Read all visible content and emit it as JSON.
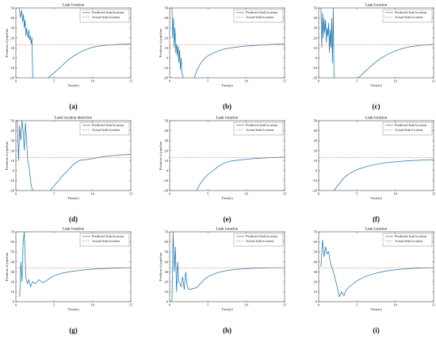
{
  "chart_data": [
    {
      "panel": "(a)",
      "type": "line",
      "title": "Leak location",
      "xlabel": "Time(s)",
      "ylabel": "Position of pipeline",
      "xlim": [
        0,
        15
      ],
      "ylim": [
        -20,
        50
      ],
      "xticks": [
        0,
        5,
        10,
        15
      ],
      "yticks": [
        -20,
        -10,
        0,
        10,
        20,
        30,
        40,
        50
      ],
      "legend": "top-right",
      "series": [
        {
          "name": "Predicted leak location",
          "color": "#1f77b4",
          "style": "solid",
          "x": [
            0.45,
            0.6,
            0.75,
            0.9,
            1.0,
            1.1,
            1.2,
            1.3,
            1.4,
            1.5,
            1.6,
            1.7,
            1.8,
            1.9,
            2.0,
            2.1,
            2.2
          ],
          "y": [
            50,
            40,
            48,
            36,
            44,
            30,
            38,
            22,
            30,
            24,
            20,
            28,
            18,
            22,
            14,
            20,
            -20
          ]
        },
        {
          "name": "Predicted leak location",
          "color": "#1f77b4",
          "style": "solid",
          "x": [
            4.2,
            5,
            6,
            7,
            8,
            9,
            10,
            11,
            12,
            13,
            14,
            15
          ],
          "y": [
            -20,
            -15,
            -8,
            -1,
            4,
            8,
            10.5,
            12,
            12.8,
            13.3,
            13.7,
            14
          ]
        },
        {
          "name": "Actual leak location",
          "color": "#e8622c",
          "style": "dashed",
          "x": [
            0,
            15
          ],
          "y": [
            13,
            13
          ]
        }
      ]
    },
    {
      "panel": "(b)",
      "type": "line",
      "title": "",
      "xlabel": "Time(s)",
      "ylabel": "Position of pipeline",
      "xlim": [
        0,
        15
      ],
      "ylim": [
        -20,
        50
      ],
      "xticks": [
        0,
        5,
        10,
        15
      ],
      "yticks": [
        -20,
        -10,
        0,
        10,
        20,
        30,
        40,
        50
      ],
      "legend": "top-right",
      "series": [
        {
          "name": "Predicted leak location",
          "color": "#1f77b4",
          "style": "solid",
          "x": [
            0.3,
            0.4,
            0.5,
            0.6,
            0.7,
            0.8,
            0.9,
            1.0,
            1.1,
            1.2,
            1.3,
            1.4,
            1.5,
            1.6,
            1.7,
            1.8
          ],
          "y": [
            50,
            20,
            40,
            10,
            30,
            5,
            14,
            2,
            12,
            -5,
            8,
            -12,
            0,
            -15,
            -18,
            -20
          ]
        },
        {
          "name": "Predicted leak location",
          "color": "#1f77b4",
          "style": "solid",
          "x": [
            3.2,
            3.6,
            4,
            4.5,
            5,
            6,
            7,
            8,
            9,
            10,
            11,
            12,
            13,
            14,
            15
          ],
          "y": [
            -20,
            -12,
            -6,
            -1,
            2,
            6,
            8.5,
            10,
            11,
            11.8,
            12.4,
            12.9,
            13.3,
            13.7,
            14
          ]
        },
        {
          "name": "Actual leak location",
          "color": "#e8622c",
          "style": "dashed",
          "x": [
            0,
            15
          ],
          "y": [
            13,
            13
          ]
        }
      ]
    },
    {
      "panel": "(c)",
      "type": "line",
      "title": "Leak location",
      "xlabel": "Time(s)",
      "ylabel": "",
      "xlim": [
        0,
        15
      ],
      "ylim": [
        -20,
        50
      ],
      "xticks": [
        0,
        5,
        10,
        15
      ],
      "yticks": [
        -20,
        -10,
        0,
        10,
        20,
        30,
        40,
        50
      ],
      "legend": "top-right",
      "series": [
        {
          "name": "Predicted leak location",
          "color": "#1f77b4",
          "style": "solid",
          "x": [
            0.3,
            0.4,
            0.5,
            0.6,
            0.7,
            0.8,
            0.9,
            1.0,
            1.1,
            1.2,
            1.3,
            1.4,
            1.5,
            1.6,
            1.7,
            1.8,
            1.9,
            2.0
          ],
          "y": [
            50,
            10,
            45,
            20,
            40,
            25,
            38,
            15,
            30,
            22,
            35,
            5,
            28,
            10,
            40,
            -5,
            50,
            -20
          ]
        },
        {
          "name": "Predicted leak location",
          "color": "#1f77b4",
          "style": "solid",
          "x": [
            5.2,
            6,
            7,
            8,
            9,
            10,
            11,
            12,
            13,
            14,
            15
          ],
          "y": [
            -20,
            -14,
            -7,
            -1,
            3.5,
            7,
            9.5,
            11.2,
            12.3,
            13,
            13.5
          ]
        },
        {
          "name": "Actual leak location",
          "color": "#e8622c",
          "style": "dashed",
          "x": [
            0,
            15
          ],
          "y": [
            13,
            13
          ]
        }
      ]
    },
    {
      "panel": "(d)",
      "type": "line",
      "title": "Leak location detection",
      "xlabel": "Time(s)",
      "ylabel": "Position of pipeline",
      "xlim": [
        0,
        15
      ],
      "ylim": [
        -20,
        50
      ],
      "xticks": [
        0,
        5,
        10,
        15
      ],
      "yticks": [
        -20,
        -10,
        0,
        10,
        20,
        30,
        40,
        50
      ],
      "legend": "top-right",
      "series": [
        {
          "name": "Predicted leak location",
          "color": "#1f77b4",
          "style": "solid",
          "x": [
            0.2,
            0.35,
            0.5,
            0.65,
            0.8,
            0.95,
            1.1,
            1.25,
            1.4,
            1.55,
            1.7,
            1.85,
            2.0,
            2.2
          ],
          "y": [
            50,
            10,
            45,
            30,
            50,
            40,
            20,
            48,
            30,
            10,
            5,
            -5,
            -15,
            -20
          ]
        },
        {
          "name": "Predicted leak location",
          "color": "#1f77b4",
          "style": "solid",
          "x": [
            4.5,
            5,
            5.5,
            6,
            6.5,
            7,
            7.5,
            8,
            8.5,
            9,
            10,
            11,
            12,
            13,
            14,
            15
          ],
          "y": [
            -20,
            -15,
            -11,
            -6,
            -2,
            2,
            6,
            9,
            10.5,
            10.8,
            12,
            13.5,
            14.5,
            15.2,
            15.8,
            16.2
          ]
        },
        {
          "name": "Actual leak location",
          "color": "#e8622c",
          "style": "dashed",
          "x": [
            0,
            15
          ],
          "y": [
            13,
            13
          ]
        }
      ]
    },
    {
      "panel": "(e)",
      "type": "line",
      "title": "Leak location",
      "xlabel": "Time(s)",
      "ylabel": "Position of pipeline",
      "xlim": [
        0,
        15
      ],
      "ylim": [
        -20,
        50
      ],
      "xticks": [
        0,
        5,
        10,
        15
      ],
      "yticks": [
        -20,
        -10,
        0,
        10,
        20,
        30,
        40,
        50
      ],
      "legend": "top-right",
      "series": [
        {
          "name": "Predicted leak location",
          "color": "#1f77b4",
          "style": "solid",
          "x": [
            3.5,
            4,
            4.5,
            5,
            5.5,
            6,
            6.5,
            7,
            7.5,
            8,
            9,
            10,
            11,
            12,
            13,
            14,
            15
          ],
          "y": [
            -20,
            -13,
            -8,
            -4,
            -1,
            2,
            5,
            7,
            8.5,
            9.5,
            10.5,
            11.3,
            12,
            12.5,
            12.9,
            13.2,
            13.5
          ]
        },
        {
          "name": "Actual leak location",
          "color": "#e8622c",
          "style": "dashed",
          "x": [
            0,
            15
          ],
          "y": [
            13,
            13
          ]
        }
      ]
    },
    {
      "panel": "(f)",
      "type": "line",
      "title": "Leak location",
      "xlabel": "Time(s)",
      "ylabel": "",
      "xlim": [
        0,
        15
      ],
      "ylim": [
        -20,
        50
      ],
      "xticks": [
        0,
        5,
        10,
        15
      ],
      "yticks": [
        -20,
        -10,
        0,
        10,
        20,
        30,
        40,
        50
      ],
      "legend": "top-right",
      "series": [
        {
          "name": "Predicted leak location",
          "color": "#1f77b4",
          "style": "solid",
          "x": [
            2.0,
            2.5,
            3,
            3.5,
            4,
            5,
            6,
            7,
            8,
            9,
            10,
            11,
            12,
            13,
            14,
            15
          ],
          "y": [
            -20,
            -15,
            -10,
            -6,
            -3,
            1,
            3.5,
            5.5,
            7,
            8,
            8.8,
            9.4,
            9.9,
            10.3,
            10.6,
            11
          ]
        },
        {
          "name": "Actual leak location",
          "color": "#e8622c",
          "style": "dashed",
          "x": [
            0,
            15
          ],
          "y": [
            13,
            13
          ]
        }
      ]
    },
    {
      "panel": "(g)",
      "type": "line",
      "title": "Leak location",
      "xlabel": "Time(s)",
      "ylabel": "Position of pipeline",
      "xlim": [
        0,
        15
      ],
      "ylim": [
        0,
        70
      ],
      "xticks": [
        0,
        5,
        10,
        15
      ],
      "yticks": [
        0,
        10,
        20,
        30,
        40,
        50,
        60,
        70
      ],
      "legend": "top-right",
      "series": [
        {
          "name": "Predicted leak location",
          "color": "#1f77b4",
          "style": "solid",
          "x": [
            0.5,
            0.65,
            0.8,
            0.95,
            1.1,
            1.3,
            1.5,
            1.7,
            1.9,
            2.2,
            2.5,
            3,
            3.5,
            4,
            4.5,
            5,
            6,
            7,
            8,
            9,
            10,
            11,
            12,
            13,
            14,
            15
          ],
          "y": [
            5,
            40,
            20,
            60,
            70,
            25,
            18,
            22,
            15,
            20,
            18,
            22,
            19,
            21,
            24,
            26,
            28.5,
            30,
            31,
            32,
            32.6,
            33,
            33.3,
            33.6,
            33.8,
            34
          ]
        },
        {
          "name": "Actual leak location",
          "color": "#e8622c",
          "style": "dashed",
          "x": [
            0,
            15
          ],
          "y": [
            34,
            34
          ]
        }
      ]
    },
    {
      "panel": "(h)",
      "type": "line",
      "title": "Leak location",
      "xlabel": "Time(s)",
      "ylabel": "Position of pipeline",
      "xlim": [
        0,
        15
      ],
      "ylim": [
        0,
        70
      ],
      "xticks": [
        0,
        5,
        10,
        15
      ],
      "yticks": [
        0,
        10,
        20,
        30,
        40,
        50,
        60,
        70
      ],
      "legend": "top-right",
      "series": [
        {
          "name": "Predicted leak location",
          "color": "#1f77b4",
          "style": "solid",
          "x": [
            0.3,
            0.45,
            0.6,
            0.75,
            0.9,
            1.05,
            1.2,
            1.35,
            1.5,
            1.7,
            1.9,
            2.1,
            2.3,
            2.6,
            3,
            3.5,
            4,
            4.5,
            5,
            6,
            7,
            8,
            9,
            10,
            11,
            12,
            13,
            14,
            15
          ],
          "y": [
            0,
            70,
            30,
            55,
            10,
            40,
            20,
            18,
            15,
            25,
            12,
            30,
            15,
            12,
            13,
            14,
            18,
            22,
            25,
            28.5,
            30.5,
            31.8,
            32.6,
            33.1,
            33.5,
            33.7,
            33.9,
            34,
            34
          ]
        },
        {
          "name": "Actual leak location",
          "color": "#e8622c",
          "style": "dashed",
          "x": [
            0,
            15
          ],
          "y": [
            34,
            34
          ]
        }
      ]
    },
    {
      "panel": "(i)",
      "type": "line",
      "title": "Leak location",
      "xlabel": "Time(s)",
      "ylabel": "",
      "xlim": [
        0,
        15
      ],
      "ylim": [
        0,
        70
      ],
      "xticks": [
        0,
        5,
        10,
        15
      ],
      "yticks": [
        0,
        10,
        20,
        30,
        40,
        50,
        60,
        70
      ],
      "legend": "top-right",
      "series": [
        {
          "name": "Predicted leak location",
          "color": "#1f77b4",
          "style": "solid",
          "x": [
            0.3,
            0.5,
            0.7,
            0.9,
            1.1,
            1.3,
            1.5,
            1.7,
            1.9,
            2.1,
            2.4,
            2.7,
            3,
            3.3,
            3.6,
            4,
            4.5,
            5,
            6,
            7,
            8,
            9,
            10,
            11,
            12,
            13,
            14,
            15
          ],
          "y": [
            35,
            62,
            45,
            55,
            48,
            50,
            40,
            35,
            30,
            25,
            15,
            5,
            10,
            6,
            12,
            15,
            18,
            21,
            25,
            27.5,
            29.5,
            31,
            32,
            32.7,
            33.2,
            33.6,
            33.8,
            34
          ]
        },
        {
          "name": "Actual leak location",
          "color": "#e8622c",
          "style": "dashed",
          "x": [
            0,
            15
          ],
          "y": [
            34,
            34
          ]
        }
      ]
    }
  ]
}
